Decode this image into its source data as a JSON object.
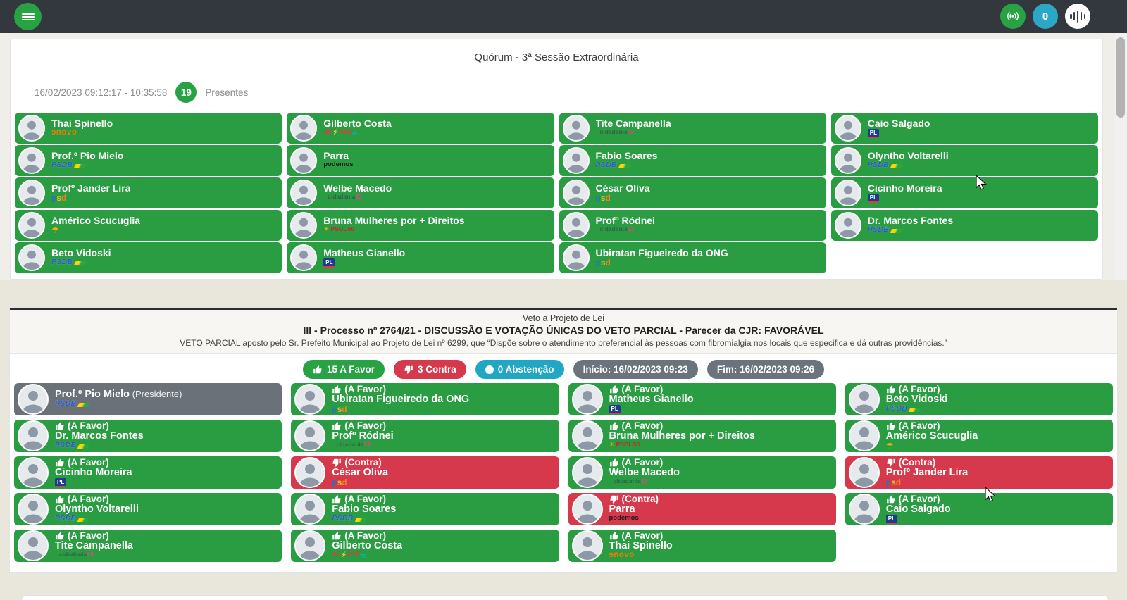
{
  "header": {
    "broadcast_count": "0"
  },
  "quorum_panel": {
    "title": "Quórum - 3ª Sessão Extraordinária",
    "session_time": "16/02/2023 09:12:17 - 10:35:58",
    "present_count": "19",
    "present_label": "Presentes",
    "members": [
      {
        "name": "Thai Spinello",
        "party": "NOVO"
      },
      {
        "name": "Gilberto Costa",
        "party": "AVANTE"
      },
      {
        "name": "Tite Campanella",
        "party": "CIDADANIA"
      },
      {
        "name": "Caio Salgado",
        "party": "PL"
      },
      {
        "name": "Prof.º Pio Mielo",
        "party": "PSDB"
      },
      {
        "name": "Parra",
        "party": "PODEMOS"
      },
      {
        "name": "Fabio Soares",
        "party": "PSDB"
      },
      {
        "name": "Olyntho Voltarelli",
        "party": "PSDB"
      },
      {
        "name": "Profº Jander Lira",
        "party": "PSD"
      },
      {
        "name": "Welbe Macedo",
        "party": "CIDADANIA"
      },
      {
        "name": "César Oliva",
        "party": "PSD"
      },
      {
        "name": "Cicinho Moreira",
        "party": "PL"
      },
      {
        "name": "Américo Scucuglia",
        "party": "SOLIDARIEDADE"
      },
      {
        "name": "Bruna Mulheres por + Direitos",
        "party": "PSOL"
      },
      {
        "name": "Profº Ródnei",
        "party": "CIDADANIA"
      },
      {
        "name": "Dr. Marcos Fontes",
        "party": "PSDB"
      },
      {
        "name": "Beto Vidoski",
        "party": "PSDB"
      },
      {
        "name": "Matheus Gianello",
        "party": "PL"
      },
      {
        "name": "Ubiratan Figueiredo da ONG",
        "party": "PSD"
      }
    ]
  },
  "voting_panel": {
    "subtitle": "Veto a Projeto de Lei",
    "title": "III - Processo nº 2764/21 - DISCUSSÃO E VOTAÇÃO ÚNICAS DO VETO PARCIAL - Parecer da CJR: FAVORÁVEL",
    "description": "VETO PARCIAL aposto pelo Sr. Prefeito Municipal ao Projeto de Lei nº 6299, que “Dispõe sobre o atendimento preferencial às pessoas com fibromialgia nos locais que especifica e dá outras providências.”",
    "summary": {
      "favor": "15 A Favor",
      "contra": "3 Contra",
      "abstencao": "0 Abstenção",
      "inicio": "Início: 16/02/2023 09:23",
      "fim": "Fim: 16/02/2023 09:26"
    },
    "favor_label": "(A Favor)",
    "contra_label": "(Contra)",
    "president_suffix": " (Presidente)",
    "votes": [
      {
        "name": "Prof.º Pio Mielo",
        "party": "PSDB",
        "vote": "president"
      },
      {
        "name": "Ubiratan Figueiredo da ONG",
        "party": "PSD",
        "vote": "favor"
      },
      {
        "name": "Matheus Gianello",
        "party": "PL",
        "vote": "favor"
      },
      {
        "name": "Beto Vidoski",
        "party": "PSDB",
        "vote": "favor"
      },
      {
        "name": "Dr. Marcos Fontes",
        "party": "PSDB",
        "vote": "favor"
      },
      {
        "name": "Profº Ródnei",
        "party": "CIDADANIA",
        "vote": "favor"
      },
      {
        "name": "Bruna Mulheres por + Direitos",
        "party": "PSOL",
        "vote": "favor"
      },
      {
        "name": "Américo Scucuglia",
        "party": "SOLIDARIEDADE",
        "vote": "favor"
      },
      {
        "name": "Cicinho Moreira",
        "party": "PL",
        "vote": "favor"
      },
      {
        "name": "César Oliva",
        "party": "PSD",
        "vote": "contra"
      },
      {
        "name": "Welbe Macedo",
        "party": "CIDADANIA",
        "vote": "favor"
      },
      {
        "name": "Profº Jander Lira",
        "party": "PSD",
        "vote": "contra"
      },
      {
        "name": "Olyntho Voltarelli",
        "party": "PSDB",
        "vote": "favor"
      },
      {
        "name": "Fabio Soares",
        "party": "PSDB",
        "vote": "favor"
      },
      {
        "name": "Parra",
        "party": "PODEMOS",
        "vote": "contra"
      },
      {
        "name": "Caio Salgado",
        "party": "PL",
        "vote": "favor"
      },
      {
        "name": "Tite Campanella",
        "party": "CIDADANIA",
        "vote": "favor"
      },
      {
        "name": "Gilberto Costa",
        "party": "AVANTE",
        "vote": "favor"
      },
      {
        "name": "Thai Spinello",
        "party": "NOVO",
        "vote": "favor"
      }
    ]
  },
  "parties": {
    "NOVO": {
      "parts": [
        {
          "t": "ɘnovo",
          "c": "novo-main"
        }
      ]
    },
    "AVANTE": {
      "parts": [
        {
          "t": "AV",
          "c": "av-red"
        },
        {
          "t": "⚡",
          "c": "av-bolt"
        },
        {
          "t": "NTE",
          "c": "av-red"
        },
        {
          "t": "70",
          "c": "av-70"
        }
      ]
    },
    "CIDADANIA": {
      "parts": [
        {
          "t": "✳",
          "c": "cid-star"
        },
        {
          "t": "cidadania",
          "c": "cid-main"
        },
        {
          "t": "23",
          "c": "cid-23"
        }
      ]
    },
    "PL": {
      "parts": [
        {
          "t": "PL",
          "c": "pl-box"
        }
      ]
    },
    "PSDB": {
      "parts": [
        {
          "t": "PSDB",
          "c": "psdb-main"
        },
        {
          "t": "",
          "c": "psdb-swoosh"
        }
      ]
    },
    "PODEMOS": {
      "parts": [
        {
          "t": "podemos",
          "c": "pod-main"
        }
      ]
    },
    "PSD": {
      "parts": [
        {
          "t": "p",
          "c": "psd-p"
        },
        {
          "t": "s",
          "c": "psd-s"
        },
        {
          "t": "d",
          "c": "psd-d"
        }
      ]
    },
    "PSOL": {
      "parts": [
        {
          "t": "☀",
          "c": "psol-sun"
        },
        {
          "t": "PSOL",
          "c": "psol-main"
        },
        {
          "t": "50",
          "c": "psol-50"
        }
      ]
    },
    "SOLIDARIEDADE": {
      "parts": [
        {
          "t": "☂",
          "c": "sol-umb"
        }
      ]
    }
  },
  "colors": {
    "topbar": "#32383e",
    "green": "#28a344",
    "card_green": "#2a9d43",
    "red": "#d6384c",
    "teal": "#21a7c4",
    "gray_badge": "#6b737c",
    "president_gray": "#6b7179",
    "page_background": "#e9e6db"
  }
}
